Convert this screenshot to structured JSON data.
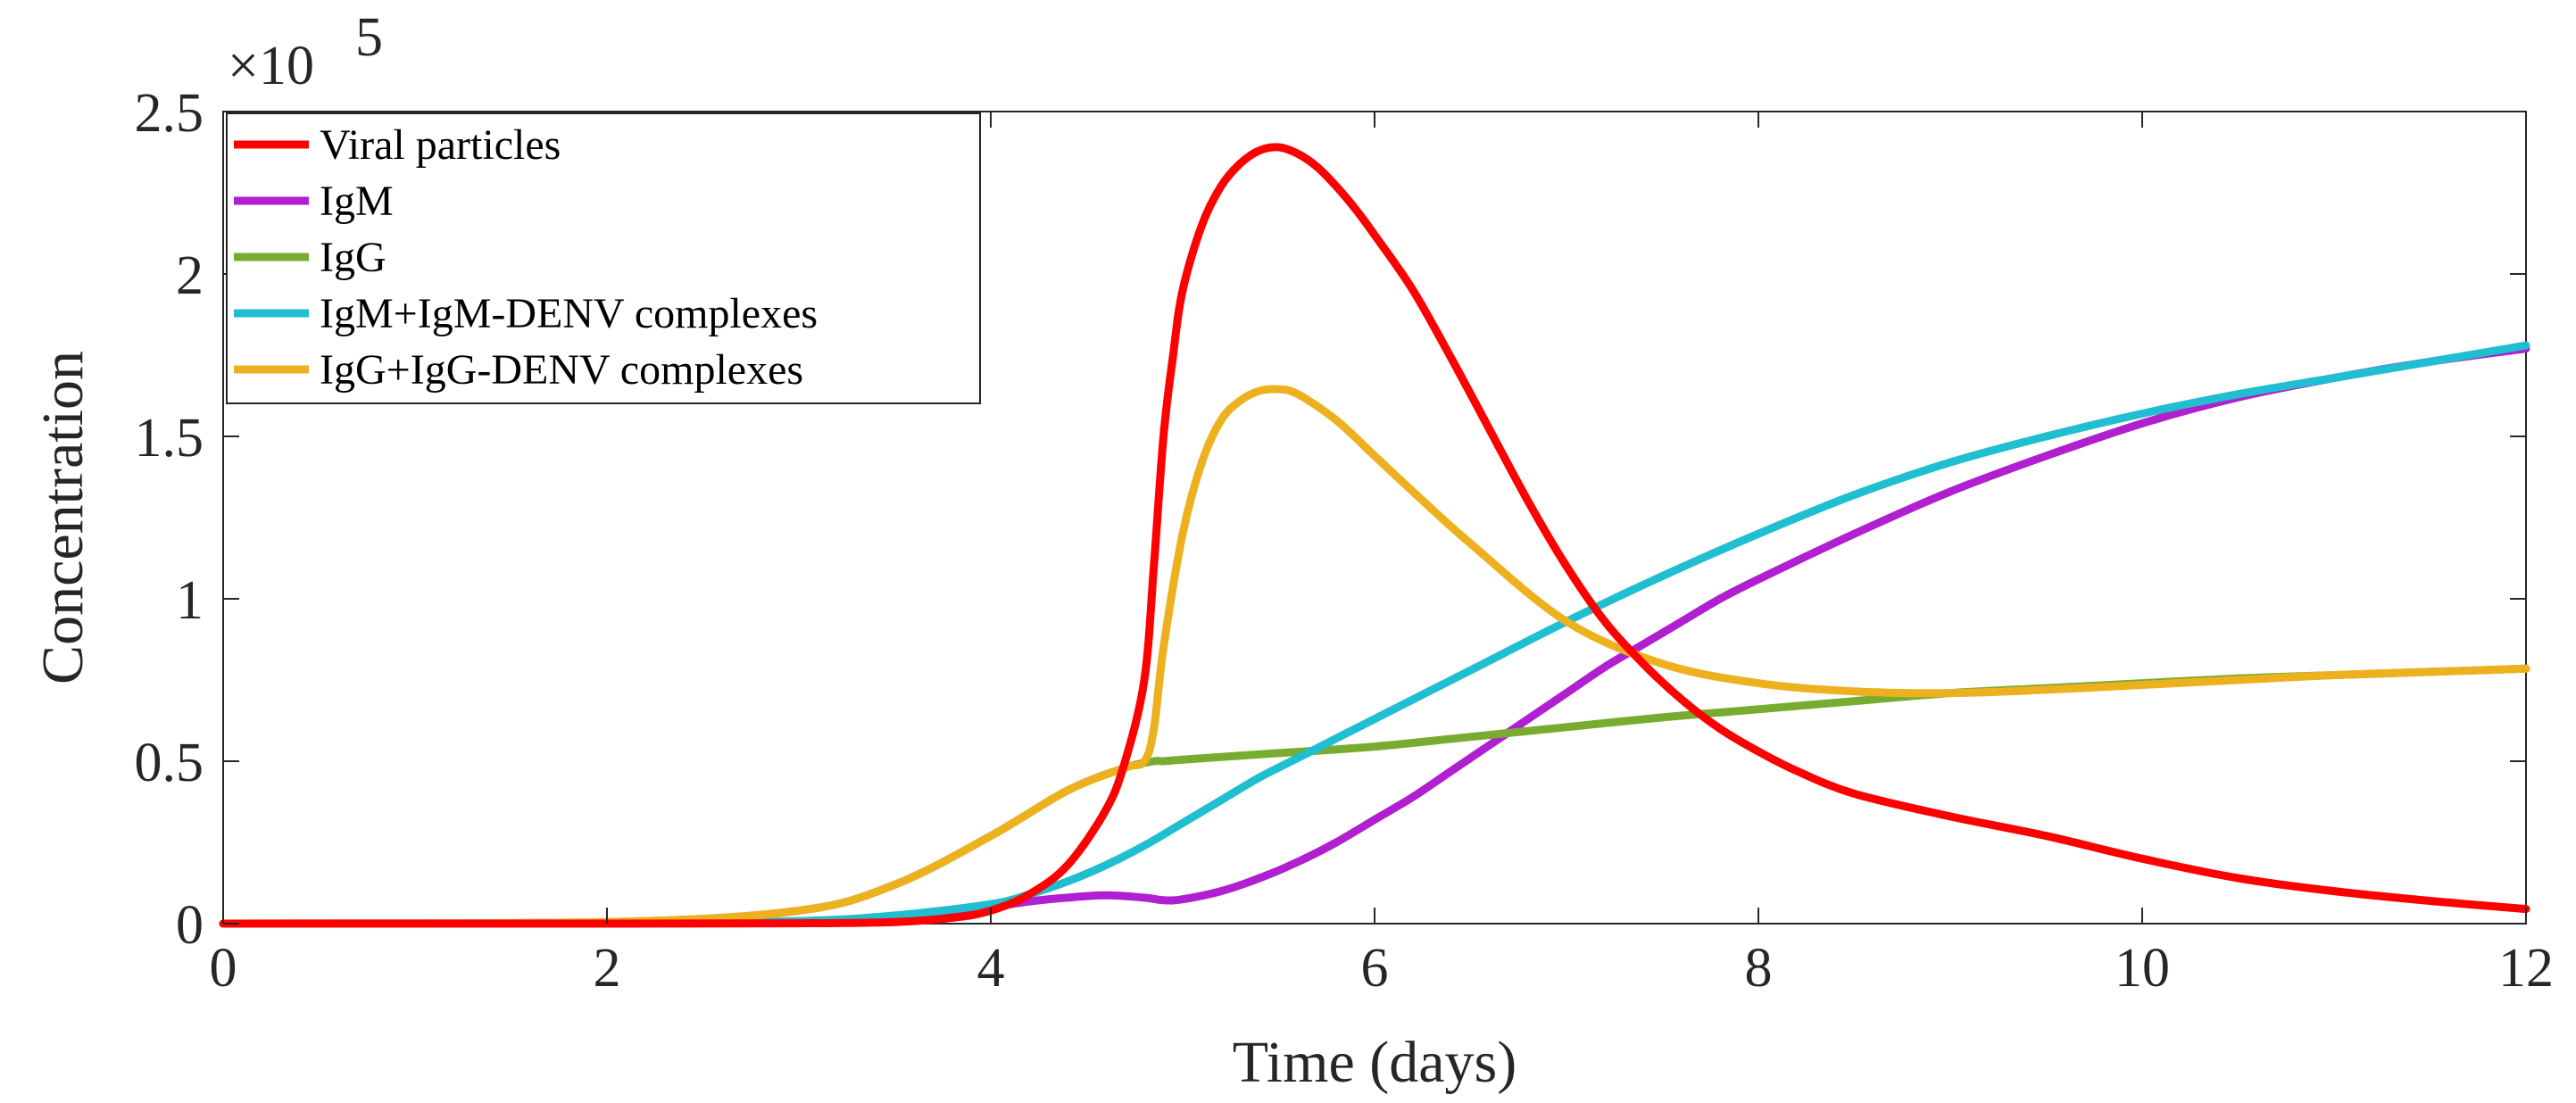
{
  "chart_data": {
    "type": "line",
    "title": "",
    "xlabel": "Time (days)",
    "ylabel": "Concentration",
    "exponent_label": "×10",
    "exponent_power": "5",
    "xlim": [
      0,
      12
    ],
    "ylim": [
      0,
      2.5
    ],
    "xticks": [
      0,
      2,
      4,
      6,
      8,
      10,
      12
    ],
    "xtick_labels": [
      "0",
      "2",
      "4",
      "6",
      "8",
      "10",
      "12"
    ],
    "yticks": [
      0,
      0.5,
      1,
      1.5,
      2,
      2.5
    ],
    "ytick_labels": [
      "0",
      "0.5",
      "1",
      "1.5",
      "2",
      "2.5"
    ],
    "grid": false,
    "legend_position": "top-left",
    "series": [
      {
        "name": "Viral particles",
        "color": "#ff0000",
        "x": [
          0,
          1,
          2,
          3,
          3.5,
          3.8,
          4,
          4.2,
          4.4,
          4.6,
          4.7,
          4.8,
          4.85,
          4.9,
          4.95,
          5.0,
          5.1,
          5.2,
          5.3,
          5.4,
          5.5,
          5.6,
          5.7,
          5.8,
          5.9,
          6.0,
          6.2,
          6.4,
          6.6,
          6.8,
          7.0,
          7.2,
          7.4,
          7.6,
          7.8,
          8.0,
          8.2,
          8.5,
          9.0,
          9.5,
          10.0,
          10.5,
          11.0,
          11.5,
          12.0
        ],
        "y": [
          0,
          0,
          0,
          0.001,
          0.005,
          0.018,
          0.04,
          0.09,
          0.18,
          0.35,
          0.5,
          0.75,
          1.1,
          1.5,
          1.75,
          1.95,
          2.15,
          2.27,
          2.34,
          2.38,
          2.39,
          2.37,
          2.33,
          2.27,
          2.2,
          2.12,
          1.95,
          1.74,
          1.52,
          1.3,
          1.1,
          0.93,
          0.8,
          0.69,
          0.6,
          0.53,
          0.47,
          0.4,
          0.33,
          0.27,
          0.2,
          0.14,
          0.1,
          0.07,
          0.045
        ]
      },
      {
        "name": "IgM",
        "color": "#b01fd0",
        "x": [
          0,
          2,
          3,
          3.5,
          3.8,
          4.0,
          4.2,
          4.4,
          4.6,
          4.8,
          4.9,
          5.0,
          5.2,
          5.4,
          5.6,
          5.8,
          6.0,
          6.2,
          6.4,
          6.6,
          6.8,
          7.0,
          7.2,
          7.4,
          7.6,
          7.8,
          8.0,
          8.5,
          9.0,
          9.5,
          10.0,
          10.5,
          11.0,
          11.5,
          12.0
        ],
        "y": [
          0,
          0.001,
          0.005,
          0.015,
          0.03,
          0.05,
          0.068,
          0.08,
          0.087,
          0.08,
          0.072,
          0.075,
          0.1,
          0.14,
          0.19,
          0.25,
          0.32,
          0.39,
          0.47,
          0.55,
          0.63,
          0.71,
          0.79,
          0.86,
          0.93,
          1.0,
          1.06,
          1.2,
          1.33,
          1.44,
          1.54,
          1.62,
          1.68,
          1.73,
          1.77
        ]
      },
      {
        "name": "IgG",
        "color": "#77ac30",
        "x": [
          0,
          2,
          3,
          3.5,
          4.0,
          4.4,
          4.7,
          4.85,
          4.9,
          5.0,
          5.5,
          6.0,
          6.5,
          7.0,
          7.5,
          8.0,
          8.5,
          9.0,
          9.5,
          10.0,
          10.5,
          11.0,
          11.5,
          12.0
        ],
        "y": [
          0,
          0.005,
          0.04,
          0.12,
          0.27,
          0.41,
          0.48,
          0.5,
          0.5,
          0.505,
          0.525,
          0.545,
          0.575,
          0.605,
          0.635,
          0.66,
          0.685,
          0.71,
          0.725,
          0.74,
          0.755,
          0.765,
          0.775,
          0.785
        ]
      },
      {
        "name": "IgM+IgM-DENV complexes",
        "color": "#1fbed0",
        "x": [
          0,
          2,
          3,
          3.5,
          4.0,
          4.2,
          4.4,
          4.6,
          4.8,
          5.0,
          5.2,
          5.4,
          5.6,
          5.8,
          6.0,
          6.5,
          7.0,
          7.5,
          8.0,
          8.5,
          9.0,
          9.5,
          10.0,
          10.5,
          11.0,
          11.5,
          12.0
        ],
        "y": [
          0,
          0.001,
          0.008,
          0.025,
          0.06,
          0.09,
          0.13,
          0.18,
          0.24,
          0.31,
          0.38,
          0.45,
          0.51,
          0.57,
          0.63,
          0.78,
          0.93,
          1.07,
          1.2,
          1.32,
          1.42,
          1.5,
          1.57,
          1.63,
          1.68,
          1.73,
          1.78
        ]
      },
      {
        "name": "IgG+IgG-DENV complexes",
        "color": "#edb120",
        "x": [
          0,
          2,
          3,
          3.5,
          4.0,
          4.4,
          4.7,
          4.8,
          4.85,
          4.9,
          5.0,
          5.1,
          5.2,
          5.3,
          5.4,
          5.5,
          5.6,
          5.8,
          6.0,
          6.2,
          6.5,
          7.0,
          7.5,
          8.0,
          8.5,
          9.0,
          9.5,
          10.0,
          10.5,
          11.0,
          11.5,
          12.0
        ],
        "y": [
          0,
          0.005,
          0.04,
          0.12,
          0.27,
          0.41,
          0.48,
          0.5,
          0.6,
          0.85,
          1.2,
          1.42,
          1.55,
          1.61,
          1.64,
          1.645,
          1.63,
          1.55,
          1.44,
          1.33,
          1.17,
          0.93,
          0.8,
          0.74,
          0.715,
          0.71,
          0.72,
          0.735,
          0.75,
          0.765,
          0.775,
          0.785
        ]
      }
    ]
  }
}
